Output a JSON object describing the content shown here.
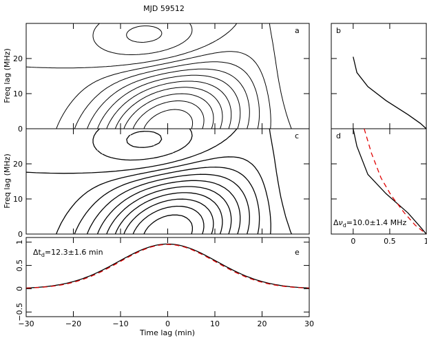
{
  "chart_data": {
    "title": "MJD 59512",
    "panels": [
      {
        "id": "a",
        "type": "contour",
        "label": "a",
        "xlabel": "",
        "ylabel": "Freq lag (MHz)",
        "xlim": [
          -30,
          30
        ],
        "ylim": [
          0,
          30
        ],
        "yticks": [
          0,
          10,
          20
        ],
        "style": "smooth contours, dashed negative levels"
      },
      {
        "id": "b",
        "type": "line",
        "label": "b",
        "xlim": [
          -0.3,
          1.0
        ],
        "ylim": [
          0,
          30
        ],
        "series": [
          {
            "x": [
              0.0,
              0.05,
              0.2,
              0.45,
              0.75,
              0.92,
              1.0
            ],
            "y": [
              20.5,
              16,
              12,
              8,
              4,
              1.5,
              0
            ]
          }
        ]
      },
      {
        "id": "c",
        "type": "contour",
        "label": "c",
        "xlabel": "",
        "ylabel": "Freq lag (MHz)",
        "xlim": [
          -30,
          30
        ],
        "ylim": [
          0,
          30
        ],
        "yticks": [
          0,
          10,
          20
        ],
        "style": "pixelated contours, dashed negative levels"
      },
      {
        "id": "d",
        "type": "line",
        "label": "d",
        "xlim": [
          -0.3,
          1.0
        ],
        "ylim": [
          0,
          30
        ],
        "xticks": [
          0,
          0.5,
          1
        ],
        "annotation": "Δν_d=10.0±1.4 MHz",
        "series": [
          {
            "style": "solid",
            "color": "#000000",
            "x": [
              0.0,
              0.05,
              0.2,
              0.45,
              0.75,
              0.92,
              1.0
            ],
            "y": [
              30,
              25,
              17,
              11.5,
              6,
              2,
              0
            ]
          },
          {
            "style": "dashed",
            "color": "#e00000",
            "x": [
              0.15,
              0.25,
              0.38,
              0.52,
              0.7,
              0.85,
              1.0
            ],
            "y": [
              30,
              23,
              16,
              11,
              6,
              2.5,
              0
            ]
          }
        ]
      },
      {
        "id": "e",
        "type": "line",
        "label": "e",
        "xlabel": "Time lag (min)",
        "xlim": [
          -30,
          30
        ],
        "ylim": [
          -0.6,
          1.1
        ],
        "xticks": [
          -30,
          -20,
          -10,
          0,
          10,
          20,
          30
        ],
        "yticks": [
          -0.5,
          0,
          0.5,
          1
        ],
        "annotation": "Δt_d=12.3±1.6 min",
        "series": [
          {
            "style": "solid",
            "color": "#000000",
            "fit": "gaussian",
            "center": 0,
            "amplitude": 0.96,
            "width_min": 12.3,
            "baseline": 0.0
          },
          {
            "style": "dashed",
            "color": "#e00000",
            "fit": "gaussian",
            "center": 0,
            "amplitude": 0.95,
            "width_min": 12.0,
            "baseline": 0.0
          }
        ]
      }
    ]
  },
  "labels": {
    "title": "MJD 59512",
    "ylabel_a": "Freq lag (MHz)",
    "ylabel_c": "Freq lag (MHz)",
    "xlabel": "Time lag (min)",
    "panel_a": "a",
    "panel_b": "b",
    "panel_c": "c",
    "panel_d": "d",
    "panel_e": "e",
    "ann_d_prefix": "Δ",
    "ann_d_sym": "ν",
    "ann_d_sub": "d",
    "ann_d_rest": "=10.0±1.4 MHz",
    "ann_e_prefix": "Δt",
    "ann_e_sub": "d",
    "ann_e_rest": "=12.3±1.6 min"
  }
}
